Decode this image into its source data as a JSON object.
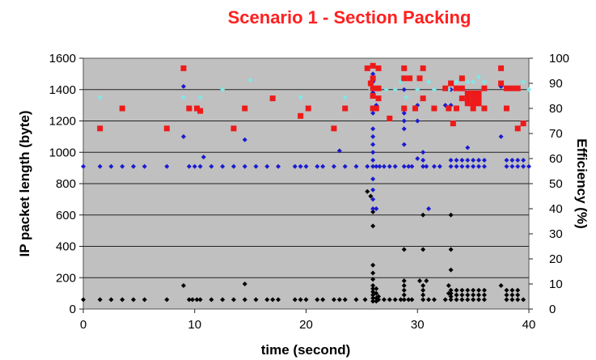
{
  "chart_data": {
    "type": "scatter",
    "title": "Scenario 1 - Section Packing",
    "xlabel": "time (second)",
    "ylabel": "IP packet length (byte)",
    "y2label": "Efficiency (%)",
    "xlim": [
      0,
      40
    ],
    "ylim": [
      0,
      1600
    ],
    "y2lim": [
      0,
      100
    ],
    "xticks": [
      0,
      10,
      20,
      30,
      40
    ],
    "yticks": [
      0,
      200,
      400,
      600,
      800,
      1000,
      1200,
      1400,
      1600
    ],
    "y2ticks": [
      0,
      10,
      20,
      30,
      40,
      50,
      60,
      70,
      80,
      90,
      100
    ],
    "grid": "horizontal",
    "background": "#c0c0c0",
    "series": [
      {
        "color": "#000000",
        "marker": "diamond",
        "axis": "left",
        "points": [
          [
            0,
            60
          ],
          [
            1.5,
            60
          ],
          [
            2.5,
            60
          ],
          [
            3.5,
            60
          ],
          [
            4.5,
            60
          ],
          [
            5.5,
            60
          ],
          [
            7.5,
            60
          ],
          [
            9,
            150
          ],
          [
            9.5,
            60
          ],
          [
            9.8,
            60
          ],
          [
            10.2,
            60
          ],
          [
            10.5,
            60
          ],
          [
            11.5,
            60
          ],
          [
            12.5,
            60
          ],
          [
            13.5,
            60
          ],
          [
            14.5,
            160
          ],
          [
            14.5,
            60
          ],
          [
            15.5,
            60
          ],
          [
            16.5,
            60
          ],
          [
            17,
            60
          ],
          [
            17.5,
            60
          ],
          [
            19,
            60
          ],
          [
            19.5,
            60
          ],
          [
            20,
            60
          ],
          [
            21,
            60
          ],
          [
            21.5,
            60
          ],
          [
            22.5,
            60
          ],
          [
            23,
            60
          ],
          [
            23.5,
            60
          ],
          [
            24.5,
            60
          ],
          [
            25.3,
            60
          ],
          [
            25.5,
            750
          ],
          [
            25.8,
            720
          ],
          [
            26,
            620
          ],
          [
            26,
            530
          ],
          [
            26,
            280
          ],
          [
            26,
            230
          ],
          [
            26,
            190
          ],
          [
            26,
            150
          ],
          [
            26,
            130
          ],
          [
            26,
            110
          ],
          [
            26,
            90
          ],
          [
            26,
            70
          ],
          [
            26,
            50
          ],
          [
            26.3,
            130
          ],
          [
            26.3,
            100
          ],
          [
            26.3,
            70
          ],
          [
            26.3,
            50
          ],
          [
            26.5,
            80
          ],
          [
            26.5,
            60
          ],
          [
            27,
            60
          ],
          [
            27.5,
            60
          ],
          [
            28,
            60
          ],
          [
            28.5,
            60
          ],
          [
            28.8,
            380
          ],
          [
            28.8,
            180
          ],
          [
            28.8,
            150
          ],
          [
            28.8,
            120
          ],
          [
            28.8,
            90
          ],
          [
            28.8,
            60
          ],
          [
            29.2,
            60
          ],
          [
            29.5,
            60
          ],
          [
            30.2,
            180
          ],
          [
            30.5,
            600
          ],
          [
            30.5,
            380
          ],
          [
            30.5,
            150
          ],
          [
            30.5,
            120
          ],
          [
            30.5,
            90
          ],
          [
            30.5,
            60
          ],
          [
            30.8,
            180
          ],
          [
            31,
            60
          ],
          [
            31.5,
            60
          ],
          [
            32.5,
            60
          ],
          [
            32.8,
            150
          ],
          [
            32.8,
            100
          ],
          [
            33,
            600
          ],
          [
            33,
            380
          ],
          [
            33,
            250
          ],
          [
            33,
            120
          ],
          [
            33,
            100
          ],
          [
            33,
            80
          ],
          [
            33,
            60
          ],
          [
            33.5,
            120
          ],
          [
            33.5,
            90
          ],
          [
            33.5,
            60
          ],
          [
            34,
            120
          ],
          [
            34,
            90
          ],
          [
            34,
            60
          ],
          [
            34.5,
            120
          ],
          [
            34.5,
            90
          ],
          [
            34.5,
            60
          ],
          [
            35,
            120
          ],
          [
            35,
            90
          ],
          [
            35,
            60
          ],
          [
            35.5,
            120
          ],
          [
            35.5,
            90
          ],
          [
            35.5,
            60
          ],
          [
            36,
            120
          ],
          [
            36,
            90
          ],
          [
            36,
            60
          ],
          [
            37.5,
            150
          ],
          [
            38,
            120
          ],
          [
            38,
            90
          ],
          [
            38,
            60
          ],
          [
            38.5,
            120
          ],
          [
            38.5,
            90
          ],
          [
            38.5,
            60
          ],
          [
            39,
            120
          ],
          [
            39,
            90
          ],
          [
            39,
            60
          ],
          [
            39.5,
            60
          ]
        ]
      },
      {
        "color": "#1a1ad0",
        "marker": "diamond",
        "axis": "left",
        "points": [
          [
            0,
            910
          ],
          [
            1.5,
            910
          ],
          [
            2.5,
            910
          ],
          [
            3.5,
            910
          ],
          [
            4.5,
            910
          ],
          [
            5.5,
            910
          ],
          [
            7.5,
            910
          ],
          [
            9,
            1420
          ],
          [
            9,
            1100
          ],
          [
            9.5,
            910
          ],
          [
            10,
            910
          ],
          [
            10.5,
            910
          ],
          [
            10.8,
            970
          ],
          [
            11.5,
            910
          ],
          [
            12.5,
            910
          ],
          [
            13.5,
            910
          ],
          [
            14.5,
            1080
          ],
          [
            14.5,
            910
          ],
          [
            15.5,
            910
          ],
          [
            16.5,
            910
          ],
          [
            17.5,
            910
          ],
          [
            19,
            910
          ],
          [
            19.5,
            910
          ],
          [
            20,
            910
          ],
          [
            21,
            910
          ],
          [
            21.5,
            910
          ],
          [
            22.5,
            910
          ],
          [
            23,
            1010
          ],
          [
            23.5,
            910
          ],
          [
            24.5,
            910
          ],
          [
            25.5,
            910
          ],
          [
            26,
            1500
          ],
          [
            26,
            1450
          ],
          [
            26,
            1380
          ],
          [
            26,
            1250
          ],
          [
            26,
            1150
          ],
          [
            26,
            1100
          ],
          [
            26,
            1050
          ],
          [
            26,
            1000
          ],
          [
            26,
            950
          ],
          [
            26,
            910
          ],
          [
            26,
            830
          ],
          [
            26,
            760
          ],
          [
            26,
            700
          ],
          [
            26,
            640
          ],
          [
            26.3,
            1300
          ],
          [
            26.3,
            910
          ],
          [
            26.3,
            640
          ],
          [
            26.6,
            910
          ],
          [
            27,
            910
          ],
          [
            27.5,
            910
          ],
          [
            28,
            910
          ],
          [
            28.8,
            1400
          ],
          [
            28.8,
            1280
          ],
          [
            28.8,
            1250
          ],
          [
            28.8,
            1200
          ],
          [
            28.8,
            1150
          ],
          [
            28.8,
            1050
          ],
          [
            28.8,
            910
          ],
          [
            29.2,
            910
          ],
          [
            29.5,
            910
          ],
          [
            30,
            1300
          ],
          [
            30,
            1200
          ],
          [
            30,
            960
          ],
          [
            30.5,
            1000
          ],
          [
            30.5,
            950
          ],
          [
            30.5,
            910
          ],
          [
            30.8,
            910
          ],
          [
            31,
            640
          ],
          [
            31.5,
            910
          ],
          [
            32,
            910
          ],
          [
            32.5,
            1300
          ],
          [
            33,
            1400
          ],
          [
            33,
            1300
          ],
          [
            33,
            950
          ],
          [
            33,
            910
          ],
          [
            33.5,
            950
          ],
          [
            33.5,
            910
          ],
          [
            34,
            950
          ],
          [
            34,
            910
          ],
          [
            34.5,
            1030
          ],
          [
            34.5,
            950
          ],
          [
            34.5,
            910
          ],
          [
            35,
            950
          ],
          [
            35,
            910
          ],
          [
            35.5,
            950
          ],
          [
            35.5,
            910
          ],
          [
            36,
            950
          ],
          [
            36,
            910
          ],
          [
            37.5,
            1420
          ],
          [
            37.5,
            1100
          ],
          [
            38,
            950
          ],
          [
            38,
            910
          ],
          [
            38.5,
            950
          ],
          [
            38.5,
            910
          ],
          [
            39,
            950
          ],
          [
            39,
            910
          ],
          [
            39.5,
            950
          ],
          [
            39.5,
            910
          ],
          [
            40,
            910
          ]
        ]
      },
      {
        "color": "#7ee8e8",
        "marker": "diamond",
        "axis": "left",
        "points": [
          [
            1.5,
            1350
          ],
          [
            9,
            1350
          ],
          [
            10.5,
            1350
          ],
          [
            12.5,
            1400
          ],
          [
            15,
            1460
          ],
          [
            19.5,
            1350
          ],
          [
            23.5,
            1350
          ],
          [
            25.8,
            1400
          ],
          [
            26.5,
            1350
          ],
          [
            27.2,
            1400
          ],
          [
            28,
            1400
          ],
          [
            28.5,
            1450
          ],
          [
            29,
            1350
          ],
          [
            30,
            1400
          ],
          [
            31,
            1450
          ],
          [
            31.5,
            1400
          ],
          [
            32.8,
            1400
          ],
          [
            33,
            1450
          ],
          [
            33.5,
            1450
          ],
          [
            34,
            1480
          ],
          [
            34.5,
            1450
          ],
          [
            35,
            1450
          ],
          [
            35.5,
            1480
          ],
          [
            36,
            1450
          ],
          [
            37.5,
            1450
          ],
          [
            38.5,
            1400
          ],
          [
            39,
            1400
          ],
          [
            39.5,
            1450
          ],
          [
            40,
            1400
          ]
        ]
      },
      {
        "color": "#ee1a1a",
        "marker": "square",
        "axis": "right",
        "points": [
          [
            1.5,
            72
          ],
          [
            3.5,
            80
          ],
          [
            7.5,
            72
          ],
          [
            9,
            96
          ],
          [
            9.5,
            80
          ],
          [
            10.2,
            80
          ],
          [
            10.5,
            79
          ],
          [
            13.5,
            72
          ],
          [
            14.5,
            80
          ],
          [
            17,
            84
          ],
          [
            19.5,
            77
          ],
          [
            20.2,
            80
          ],
          [
            22.5,
            72
          ],
          [
            23.5,
            80
          ],
          [
            25.5,
            96
          ],
          [
            25.8,
            90
          ],
          [
            26,
            97
          ],
          [
            26,
            92
          ],
          [
            26,
            88
          ],
          [
            26,
            85
          ],
          [
            26,
            80
          ],
          [
            26.3,
            80
          ],
          [
            26.5,
            96
          ],
          [
            26.5,
            88
          ],
          [
            26.5,
            84
          ],
          [
            27.5,
            76
          ],
          [
            28.8,
            96
          ],
          [
            28.8,
            92
          ],
          [
            28.8,
            80
          ],
          [
            29.3,
            92
          ],
          [
            29.8,
            80
          ],
          [
            30.2,
            92
          ],
          [
            30.5,
            96
          ],
          [
            30.5,
            84
          ],
          [
            31.5,
            80
          ],
          [
            32.5,
            88
          ],
          [
            32.8,
            80
          ],
          [
            33,
            90
          ],
          [
            33.2,
            74
          ],
          [
            33.5,
            88
          ],
          [
            33.5,
            80
          ],
          [
            34,
            92
          ],
          [
            34,
            88
          ],
          [
            34,
            84
          ],
          [
            34.5,
            86
          ],
          [
            34.5,
            84
          ],
          [
            34.5,
            82
          ],
          [
            35,
            86
          ],
          [
            35,
            84
          ],
          [
            35,
            82
          ],
          [
            35,
            80
          ],
          [
            35.5,
            86
          ],
          [
            35.5,
            84
          ],
          [
            35.5,
            82
          ],
          [
            36,
            88
          ],
          [
            36,
            80
          ],
          [
            37.5,
            96
          ],
          [
            37.5,
            90
          ],
          [
            38,
            88
          ],
          [
            38,
            80
          ],
          [
            38.5,
            88
          ],
          [
            39,
            88
          ],
          [
            39,
            72
          ],
          [
            39.5,
            74
          ]
        ]
      }
    ]
  }
}
